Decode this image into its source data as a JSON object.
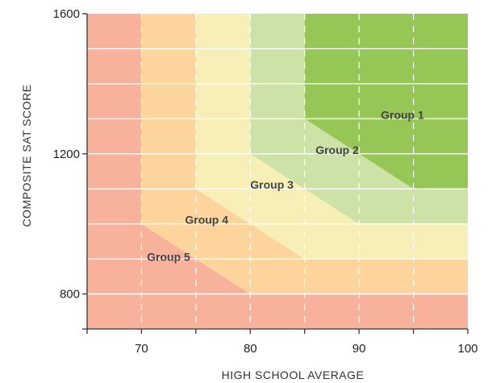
{
  "chart_data": {
    "type": "area",
    "title": "",
    "xlabel": "HIGH SCHOOL AVERAGE",
    "ylabel": "COMPOSITE SAT SCORE",
    "xlim": [
      65,
      100
    ],
    "ylim": [
      700,
      1600
    ],
    "x_ticks": [
      70,
      80,
      90,
      100
    ],
    "y_ticks": [
      800,
      1200,
      1600
    ],
    "x_minor_ticks": [
      65,
      70,
      75,
      80,
      85,
      90,
      95,
      100
    ],
    "grid": true,
    "colors": {
      "group_1": "#96c655",
      "group_2": "#cde2a6",
      "group_3": "#f7efb7",
      "group_4": "#fdd49b",
      "group_5": "#f8b29c",
      "grid": "#ffffff"
    },
    "regions": [
      {
        "name": "Group 5",
        "label_at": [
          70.5,
          895
        ],
        "color_key": "group_5",
        "boundary": [
          [
            65,
            700
          ],
          [
            100,
            700
          ],
          [
            100,
            800
          ],
          [
            80,
            800
          ],
          [
            70,
            1000
          ],
          [
            70,
            1600
          ],
          [
            65,
            1600
          ]
        ]
      },
      {
        "name": "Group 4",
        "label_at": [
          74,
          1000
        ],
        "color_key": "group_4",
        "boundary": [
          [
            70,
            1000
          ],
          [
            80,
            800
          ],
          [
            100,
            800
          ],
          [
            100,
            900
          ],
          [
            85,
            900
          ],
          [
            75,
            1100
          ],
          [
            75,
            1600
          ],
          [
            70,
            1600
          ]
        ]
      },
      {
        "name": "Group 3",
        "label_at": [
          80,
          1100
        ],
        "color_key": "group_3",
        "boundary": [
          [
            75,
            1100
          ],
          [
            85,
            900
          ],
          [
            100,
            900
          ],
          [
            100,
            1000
          ],
          [
            90,
            1000
          ],
          [
            80,
            1200
          ],
          [
            80,
            1600
          ],
          [
            75,
            1600
          ]
        ]
      },
      {
        "name": "Group 2",
        "label_at": [
          86,
          1200
        ],
        "color_key": "group_2",
        "boundary": [
          [
            80,
            1200
          ],
          [
            90,
            1000
          ],
          [
            100,
            1000
          ],
          [
            100,
            1100
          ],
          [
            95,
            1100
          ],
          [
            85,
            1300
          ],
          [
            85,
            1600
          ],
          [
            80,
            1600
          ]
        ]
      },
      {
        "name": "Group 1",
        "label_at": [
          92,
          1300
        ],
        "color_key": "group_1",
        "boundary": [
          [
            85,
            1300
          ],
          [
            95,
            1100
          ],
          [
            100,
            1100
          ],
          [
            100,
            1600
          ],
          [
            85,
            1600
          ]
        ]
      }
    ]
  }
}
